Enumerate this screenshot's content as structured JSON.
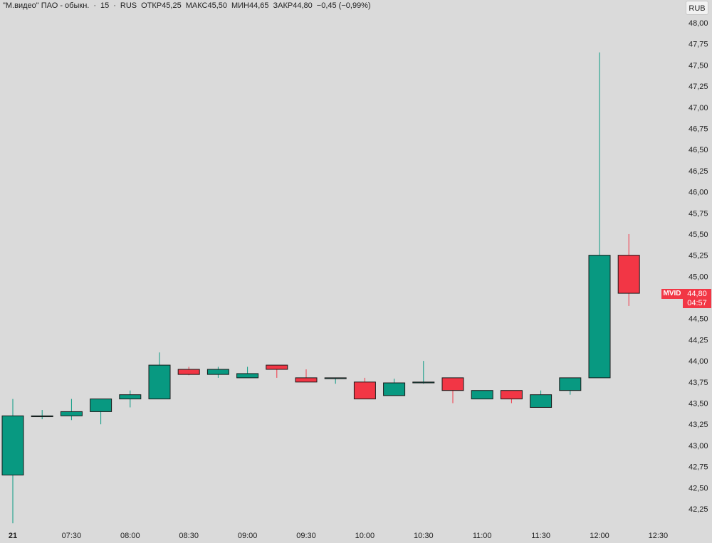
{
  "legend": {
    "name": "\"М.видео\" ПАО - обыкн.",
    "sep1": "·",
    "interval": "15",
    "sep2": "·",
    "exchange": "RUS",
    "open_label": "ОТКР",
    "open": "45,25",
    "high_label": "МАКС",
    "high": "45,50",
    "low_label": "МИН",
    "low": "44,65",
    "close_label": "ЗАКР",
    "close": "44,80",
    "change": "−0,45 (−0,99%)"
  },
  "currency": "RUB",
  "price_tag": {
    "ticker": "MVID",
    "price": "44,80",
    "countdown": "04:57"
  },
  "colors": {
    "up": "#089981",
    "down": "#f23645",
    "background": "#dadada",
    "text": "#222222"
  },
  "chart_data": {
    "type": "candlestick",
    "interval_minutes": 15,
    "y_tick_labels": [
      "42,25",
      "42,50",
      "42,75",
      "43,00",
      "43,25",
      "43,50",
      "43,75",
      "44,00",
      "44,25",
      "44,50",
      "44,75",
      "45,00",
      "45,25",
      "45,50",
      "45,75",
      "46,00",
      "46,25",
      "46,50",
      "46,75",
      "47,00",
      "47,25",
      "47,50",
      "47,75",
      "48,00"
    ],
    "y_ticks": [
      42.25,
      42.5,
      42.75,
      43.0,
      43.25,
      43.5,
      43.75,
      44.0,
      44.25,
      44.5,
      44.75,
      45.0,
      45.25,
      45.5,
      45.75,
      46.0,
      46.25,
      46.5,
      46.75,
      47.0,
      47.25,
      47.5,
      47.75,
      48.0
    ],
    "ylim": [
      42.05,
      48.12
    ],
    "x_tick_labels": [
      "21",
      "07:30",
      "08:00",
      "08:30",
      "09:00",
      "09:30",
      "10:00",
      "10:30",
      "11:00",
      "11:30",
      "12:00",
      "12:30"
    ],
    "x_tick_bar_index": [
      0,
      2,
      4,
      6,
      8,
      10,
      12,
      14,
      16,
      18,
      20,
      22
    ],
    "candles": [
      {
        "time": "07:00",
        "open": 42.65,
        "high": 43.55,
        "low": 42.08,
        "close": 43.35
      },
      {
        "time": "07:15",
        "open": 43.34,
        "high": 43.42,
        "low": 43.31,
        "close": 43.35
      },
      {
        "time": "07:30",
        "open": 43.35,
        "high": 43.55,
        "low": 43.3,
        "close": 43.4
      },
      {
        "time": "07:45",
        "open": 43.4,
        "high": 43.55,
        "low": 43.25,
        "close": 43.55
      },
      {
        "time": "08:00",
        "open": 43.55,
        "high": 43.65,
        "low": 43.45,
        "close": 43.6
      },
      {
        "time": "08:15",
        "open": 43.55,
        "high": 44.1,
        "low": 43.55,
        "close": 43.95
      },
      {
        "time": "08:30",
        "open": 43.9,
        "high": 43.93,
        "low": 43.83,
        "close": 43.84
      },
      {
        "time": "08:45",
        "open": 43.84,
        "high": 43.93,
        "low": 43.8,
        "close": 43.9
      },
      {
        "time": "09:00",
        "open": 43.8,
        "high": 43.93,
        "low": 43.8,
        "close": 43.85
      },
      {
        "time": "09:15",
        "open": 43.95,
        "high": 43.95,
        "low": 43.8,
        "close": 43.9
      },
      {
        "time": "09:30",
        "open": 43.8,
        "high": 43.9,
        "low": 43.75,
        "close": 43.75
      },
      {
        "time": "09:45",
        "open": 43.79,
        "high": 43.79,
        "low": 43.73,
        "close": 43.8
      },
      {
        "time": "10:00",
        "open": 43.75,
        "high": 43.8,
        "low": 43.55,
        "close": 43.55
      },
      {
        "time": "10:15",
        "open": 43.59,
        "high": 43.79,
        "low": 43.59,
        "close": 43.74
      },
      {
        "time": "10:30",
        "open": 43.74,
        "high": 44.0,
        "low": 43.73,
        "close": 43.75
      },
      {
        "time": "10:45",
        "open": 43.8,
        "high": 43.8,
        "low": 43.5,
        "close": 43.65
      },
      {
        "time": "11:00",
        "open": 43.55,
        "high": 43.65,
        "low": 43.55,
        "close": 43.65
      },
      {
        "time": "11:15",
        "open": 43.65,
        "high": 43.65,
        "low": 43.5,
        "close": 43.55
      },
      {
        "time": "11:30",
        "open": 43.45,
        "high": 43.65,
        "low": 43.45,
        "close": 43.6
      },
      {
        "time": "11:45",
        "open": 43.65,
        "high": 43.8,
        "low": 43.6,
        "close": 43.8
      },
      {
        "time": "12:00",
        "open": 43.8,
        "high": 47.65,
        "low": 43.8,
        "close": 45.25
      },
      {
        "time": "12:15",
        "open": 45.25,
        "high": 45.5,
        "low": 44.65,
        "close": 44.8
      }
    ]
  }
}
